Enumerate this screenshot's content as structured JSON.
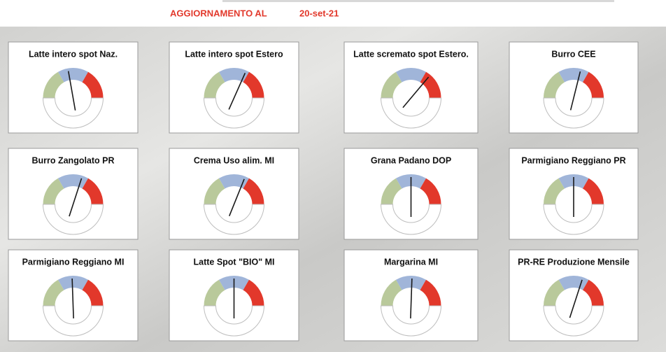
{
  "header": {
    "title": "AGGIORNAMENTO AL",
    "date": "20-set-21"
  },
  "chart_data": [
    {
      "type": "gauge",
      "title": "Latte intero spot Naz.",
      "value": 40,
      "ylim": [
        0,
        90
      ],
      "bands": [
        30,
        30,
        30
      ],
      "band_colors": [
        "#b9c99b",
        "#a0b5d9",
        "#e2382b"
      ]
    },
    {
      "type": "gauge",
      "title": "Latte intero spot Estero",
      "value": 57,
      "ylim": [
        0,
        90
      ],
      "bands": [
        30,
        30,
        30
      ],
      "band_colors": [
        "#b9c99b",
        "#a0b5d9",
        "#e2382b"
      ]
    },
    {
      "type": "gauge",
      "title": "Latte scremato spot Estero.",
      "value": 65,
      "ylim": [
        0,
        90
      ],
      "bands": [
        30,
        30,
        30
      ],
      "band_colors": [
        "#b9c99b",
        "#a0b5d9",
        "#e2382b"
      ]
    },
    {
      "type": "gauge",
      "title": "Burro CEE",
      "value": 52,
      "ylim": [
        0,
        90
      ],
      "bands": [
        30,
        30,
        30
      ],
      "band_colors": [
        "#b9c99b",
        "#a0b5d9",
        "#e2382b"
      ]
    },
    {
      "type": "gauge",
      "title": "Burro Zangolato PR",
      "value": 54,
      "ylim": [
        0,
        90
      ],
      "bands": [
        30,
        30,
        30
      ],
      "band_colors": [
        "#b9c99b",
        "#a0b5d9",
        "#e2382b"
      ]
    },
    {
      "type": "gauge",
      "title": "Crema Uso alim. MI",
      "value": 56,
      "ylim": [
        0,
        90
      ],
      "bands": [
        30,
        30,
        30
      ],
      "band_colors": [
        "#b9c99b",
        "#a0b5d9",
        "#e2382b"
      ]
    },
    {
      "type": "gauge",
      "title": "Grana Padano DOP",
      "value": 45,
      "ylim": [
        0,
        90
      ],
      "bands": [
        30,
        30,
        30
      ],
      "band_colors": [
        "#b9c99b",
        "#a0b5d9",
        "#e2382b"
      ]
    },
    {
      "type": "gauge",
      "title": "Parmigiano Reggiano PR",
      "value": 45,
      "ylim": [
        0,
        90
      ],
      "bands": [
        30,
        30,
        30
      ],
      "band_colors": [
        "#b9c99b",
        "#a0b5d9",
        "#e2382b"
      ]
    },
    {
      "type": "gauge",
      "title": "Parmigiano Reggiano MI",
      "value": 44,
      "ylim": [
        0,
        90
      ],
      "bands": [
        30,
        30,
        30
      ],
      "band_colors": [
        "#b9c99b",
        "#a0b5d9",
        "#e2382b"
      ]
    },
    {
      "type": "gauge",
      "title": "Latte Spot \"BIO\" MI",
      "value": 45,
      "ylim": [
        0,
        90
      ],
      "bands": [
        30,
        30,
        30
      ],
      "band_colors": [
        "#b9c99b",
        "#a0b5d9",
        "#e2382b"
      ]
    },
    {
      "type": "gauge",
      "title": "Margarina MI",
      "value": 46,
      "ylim": [
        0,
        90
      ],
      "bands": [
        30,
        30,
        30
      ],
      "band_colors": [
        "#b9c99b",
        "#a0b5d9",
        "#e2382b"
      ]
    },
    {
      "type": "gauge",
      "title": "PR-RE Produzione Mensile",
      "value": 54,
      "ylim": [
        0,
        90
      ],
      "bands": [
        30,
        30,
        30
      ],
      "band_colors": [
        "#b9c99b",
        "#a0b5d9",
        "#e2382b"
      ]
    }
  ]
}
